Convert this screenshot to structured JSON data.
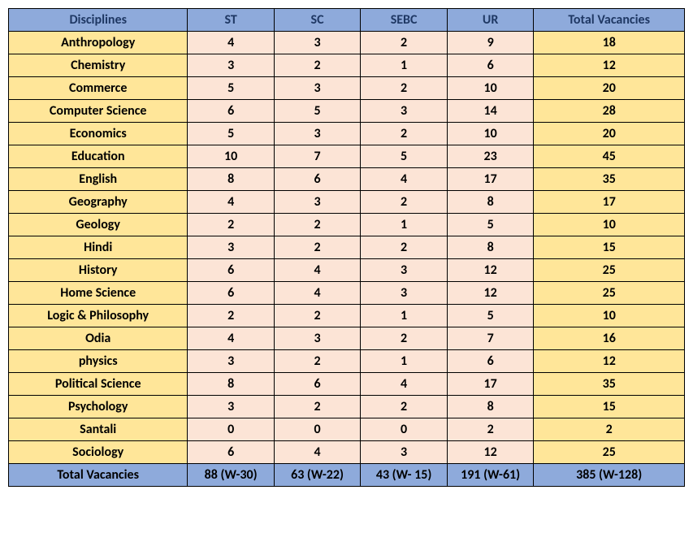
{
  "table": {
    "type": "table",
    "header_bg": "#8eaadb",
    "footer_bg": "#8eaadb",
    "disc_col_bg": "#ffe699",
    "data_col_bg": "#fce4d6",
    "total_col_bg": "#ffe699",
    "border_color": "#000000",
    "header_text_color": "#1f3864",
    "columns": [
      "Disciplines",
      "ST",
      "SC",
      "SEBC",
      "UR",
      "Total Vacancies"
    ],
    "rows": [
      [
        "Anthropology",
        "4",
        "3",
        "2",
        "9",
        "18"
      ],
      [
        "Chemistry",
        "3",
        "2",
        "1",
        "6",
        "12"
      ],
      [
        "Commerce",
        "5",
        "3",
        "2",
        "10",
        "20"
      ],
      [
        "Computer Science",
        "6",
        "5",
        "3",
        "14",
        "28"
      ],
      [
        "Economics",
        "5",
        "3",
        "2",
        "10",
        "20"
      ],
      [
        "Education",
        "10",
        "7",
        "5",
        "23",
        "45"
      ],
      [
        "English",
        "8",
        "6",
        "4",
        "17",
        "35"
      ],
      [
        "Geography",
        "4",
        "3",
        "2",
        "8",
        "17"
      ],
      [
        "Geology",
        "2",
        "2",
        "1",
        "5",
        "10"
      ],
      [
        "Hindi",
        "3",
        "2",
        "2",
        "8",
        "15"
      ],
      [
        "History",
        "6",
        "4",
        "3",
        "12",
        "25"
      ],
      [
        "Home Science",
        "6",
        "4",
        "3",
        "12",
        "25"
      ],
      [
        "Logic & Philosophy",
        "2",
        "2",
        "1",
        "5",
        "10"
      ],
      [
        "Odia",
        "4",
        "3",
        "2",
        "7",
        "16"
      ],
      [
        "physics",
        "3",
        "2",
        "1",
        "6",
        "12"
      ],
      [
        "Political Science",
        "8",
        "6",
        "4",
        "17",
        "35"
      ],
      [
        "Psychology",
        "3",
        "2",
        "2",
        "8",
        "15"
      ],
      [
        "Santali",
        "0",
        "0",
        "0",
        "2",
        "2"
      ],
      [
        "Sociology",
        "6",
        "4",
        "3",
        "12",
        "25"
      ]
    ],
    "footer": [
      "Total Vacancies",
      "88 (W-30)",
      "63 (W-22)",
      "43 (W- 15)",
      "191 (W-61)",
      "385 (W-128)"
    ]
  }
}
